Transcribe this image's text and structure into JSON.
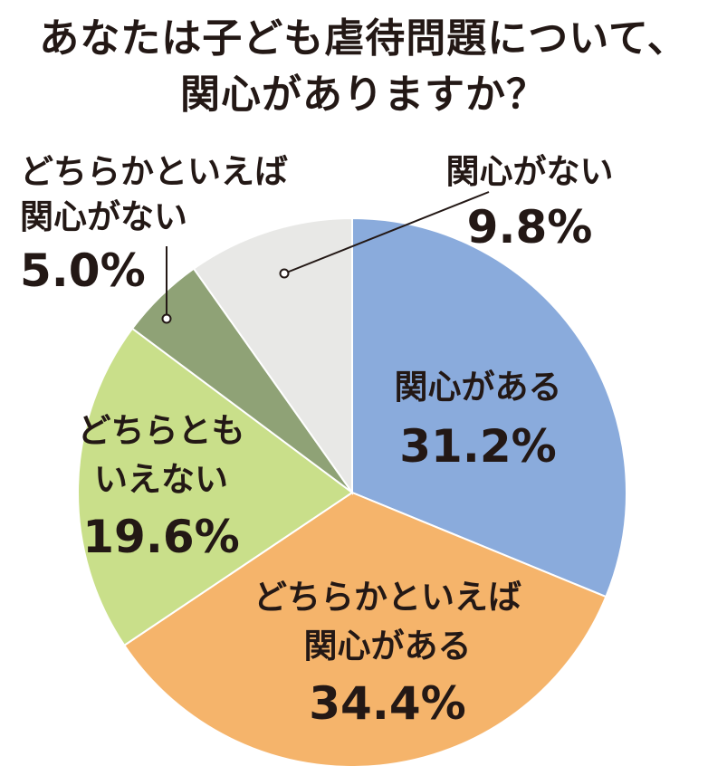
{
  "title_lines": [
    "あなたは子ども虐待問題について、",
    "関心がありますか？"
  ],
  "chart_data": {
    "type": "pie",
    "title": "あなたは子ども虐待問題について、関心がありますか？",
    "slices": [
      {
        "label_lines": [
          "関心がある"
        ],
        "value": 31.2,
        "value_text": "31.2%",
        "color": "#8aabdc"
      },
      {
        "label_lines": [
          "どちらかといえば",
          "関心がある"
        ],
        "value": 34.4,
        "value_text": "34.4%",
        "color": "#f5b46b"
      },
      {
        "label_lines": [
          "どちらとも",
          "いえない"
        ],
        "value": 19.6,
        "value_text": "19.6%",
        "color": "#c9df8a"
      },
      {
        "label_lines": [
          "どちらかといえば",
          "関心がない"
        ],
        "value": 5.0,
        "value_text": "5.0%",
        "color": "#8fa276"
      },
      {
        "label_lines": [
          "関心がない"
        ],
        "value": 9.8,
        "value_text": "9.8%",
        "color": "#e8e8e6"
      }
    ],
    "start": "12 o'clock",
    "direction": "clockwise",
    "legend": "none"
  }
}
